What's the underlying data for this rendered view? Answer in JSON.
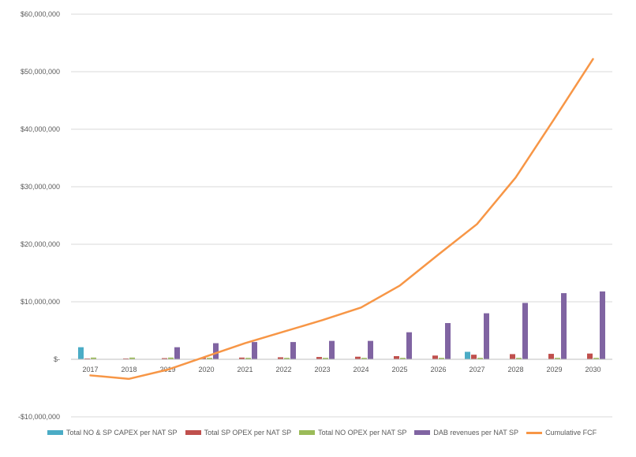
{
  "chart_data": {
    "type": "bar",
    "title": "",
    "xlabel": "",
    "ylabel": "",
    "categories": [
      "2017",
      "2018",
      "2019",
      "2020",
      "2021",
      "2022",
      "2023",
      "2024",
      "2025",
      "2026",
      "2027",
      "2028",
      "2029",
      "2030"
    ],
    "ylim": [
      -10000000,
      60000000
    ],
    "yticks": [
      60000000,
      50000000,
      40000000,
      30000000,
      20000000,
      10000000,
      0,
      -10000000
    ],
    "ytick_labels": [
      "$60,000,000",
      "$50,000,000",
      "$40,000,000",
      "$30,000,000",
      "$20,000,000",
      "$10,000,000",
      "$-",
      "-$10,000,000"
    ],
    "grid": true,
    "legend_position": "bottom",
    "series": [
      {
        "name": "Total NO & SP CAPEX per NAT SP",
        "type": "bar",
        "color": "#4BACC6",
        "values": [
          2100000,
          0,
          0,
          0,
          0,
          0,
          0,
          0,
          0,
          0,
          1300000,
          0,
          0,
          0
        ]
      },
      {
        "name": "Total SP OPEX per NAT SP",
        "type": "bar",
        "color": "#C0504D",
        "values": [
          150000,
          150000,
          200000,
          250000,
          300000,
          350000,
          400000,
          450000,
          550000,
          650000,
          800000,
          900000,
          950000,
          1000000
        ]
      },
      {
        "name": "Total NO OPEX per NAT SP",
        "type": "bar",
        "color": "#9BBB59",
        "values": [
          300000,
          300000,
          300000,
          250000,
          250000,
          250000,
          250000,
          250000,
          250000,
          250000,
          250000,
          250000,
          250000,
          250000
        ]
      },
      {
        "name": "DAB revenues per NAT SP",
        "type": "bar",
        "color": "#8064A2",
        "values": [
          0,
          0,
          2100000,
          2800000,
          3000000,
          3000000,
          3200000,
          3200000,
          4700000,
          6300000,
          8000000,
          9800000,
          11500000,
          11800000
        ]
      },
      {
        "name": "Cumulative FCF",
        "type": "line",
        "color": "#F79646",
        "values": [
          -2800000,
          -3400000,
          -1800000,
          500000,
          2800000,
          4800000,
          6800000,
          9000000,
          12800000,
          18200000,
          23500000,
          31600000,
          41800000,
          52200000
        ]
      }
    ]
  }
}
